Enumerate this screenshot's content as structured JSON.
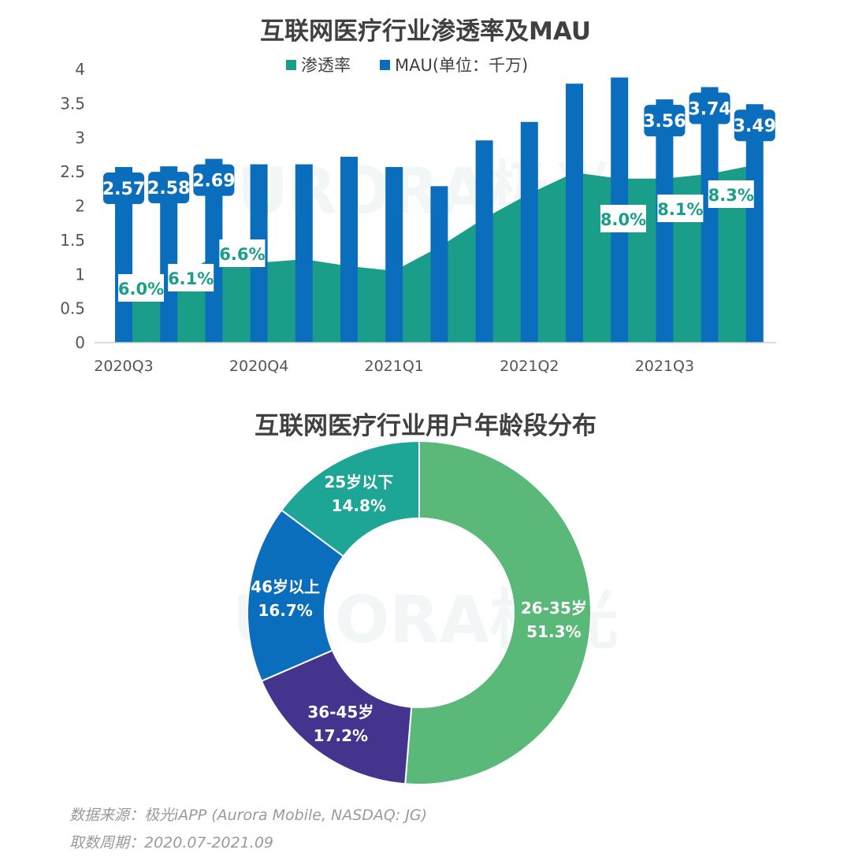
{
  "chart_data": [
    {
      "type": "bar",
      "title": "互联网医疗行业渗透率及MAU",
      "legend_position": "top",
      "legend": [
        "渗透率",
        "MAU(单位：千万)"
      ],
      "x_labels": [
        "2020Q3",
        "2020Q4",
        "2021Q1",
        "2021Q2",
        "2021Q3"
      ],
      "ylim": [
        0,
        4
      ],
      "yticks": [
        "0",
        "0.5",
        "1",
        "1.5",
        "2",
        "2.5",
        "3",
        "3.5",
        "4"
      ],
      "grid": false,
      "series": [
        {
          "name": "MAU(单位：千万)",
          "type": "bar",
          "color": "#0a6ebd",
          "values": [
            2.57,
            2.58,
            2.69,
            2.61,
            2.61,
            2.72,
            2.57,
            2.29,
            2.96,
            3.23,
            3.79,
            3.88,
            3.56,
            3.74,
            3.49
          ],
          "labels": [
            "2.57",
            "2.58",
            "2.69",
            "",
            "",
            "",
            "",
            "",
            "",
            "",
            "",
            "",
            "3.56",
            "3.74",
            "3.49"
          ]
        },
        {
          "name": "渗透率",
          "type": "area",
          "color": "#1a9e8a",
          "values": [
            0.72,
            0.92,
            1.25,
            1.17,
            1.22,
            1.12,
            1.05,
            1.4,
            1.82,
            2.18,
            2.49,
            2.4,
            2.4,
            2.47,
            2.6
          ],
          "labels": [
            "6.0%",
            "6.1%",
            "6.6%",
            "",
            "",
            "",
            "",
            "",
            "",
            "",
            "8.0%",
            "",
            "8.1%",
            "",
            "8.3%"
          ]
        }
      ]
    },
    {
      "type": "pie",
      "title": "互联网医疗行业用户年龄段分布",
      "slices": [
        {
          "label": "26-35岁",
          "value": 51.3,
          "text": "51.3%",
          "color": "#5ab878"
        },
        {
          "label": "36-45岁",
          "value": 17.2,
          "text": "17.2%",
          "color": "#44348e"
        },
        {
          "label": "46岁以上",
          "value": 16.7,
          "text": "16.7%",
          "color": "#0a6ebd"
        },
        {
          "label": "25岁以下",
          "value": 14.8,
          "text": "14.8%",
          "color": "#1da596"
        }
      ]
    }
  ],
  "watermark": "URORA极光",
  "footer": {
    "source": "数据来源：极光iAPP (Aurora Mobile, NASDAQ: JG)",
    "period": "取数周期：2020.07-2021.09"
  }
}
